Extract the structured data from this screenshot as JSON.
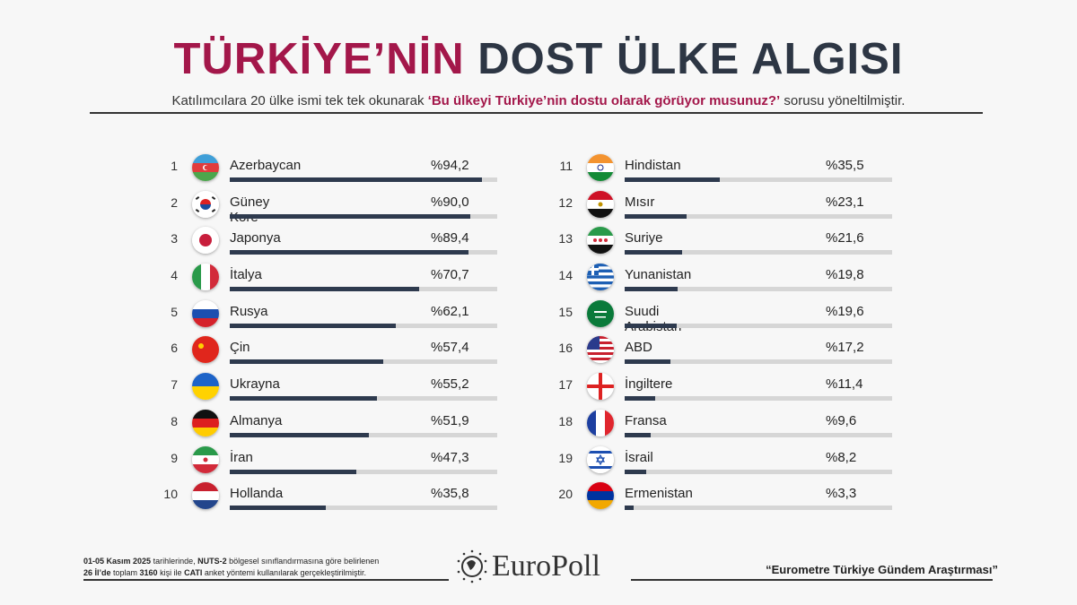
{
  "title": {
    "part1": "TÜRKİYE’NİN",
    "part2": "DOST ÜLKE ALGISI"
  },
  "subtitle": {
    "pre": "Katılımcılara 20 ülke ismi tek tek okunarak ",
    "highlight": "‘Bu ülkeyi Türkiye’nin dostu olarak görüyor musunuz?’",
    "post": " sorusu yöneltilmiştir."
  },
  "colors": {
    "title_accent": "#a3174a",
    "title_dark": "#2d3644",
    "bar": "#2e3a4e",
    "track": "#d6d6d6"
  },
  "chart_data": {
    "type": "bar",
    "orientation": "horizontal",
    "unit": "%",
    "xlim": [
      0,
      100
    ],
    "items": [
      {
        "rank": "1",
        "name": "Azerbaycan",
        "label": "%94,2",
        "value": 94.2,
        "flag": "az"
      },
      {
        "rank": "2",
        "name": "Güney Kore",
        "label": "%90,0",
        "value": 90.0,
        "flag": "kr"
      },
      {
        "rank": "3",
        "name": "Japonya",
        "label": "%89,4",
        "value": 89.4,
        "flag": "jp"
      },
      {
        "rank": "4",
        "name": "İtalya",
        "label": "%70,7",
        "value": 70.7,
        "flag": "it"
      },
      {
        "rank": "5",
        "name": "Rusya",
        "label": "%62,1",
        "value": 62.1,
        "flag": "ru"
      },
      {
        "rank": "6",
        "name": "Çin",
        "label": "%57,4",
        "value": 57.4,
        "flag": "cn"
      },
      {
        "rank": "7",
        "name": "Ukrayna",
        "label": "%55,2",
        "value": 55.2,
        "flag": "ua"
      },
      {
        "rank": "8",
        "name": "Almanya",
        "label": "%51,9",
        "value": 51.9,
        "flag": "de"
      },
      {
        "rank": "9",
        "name": "İran",
        "label": "%47,3",
        "value": 47.3,
        "flag": "ir"
      },
      {
        "rank": "10",
        "name": "Hollanda",
        "label": "%35,8",
        "value": 35.8,
        "flag": "nl"
      },
      {
        "rank": "11",
        "name": "Hindistan",
        "label": "%35,5",
        "value": 35.5,
        "flag": "in"
      },
      {
        "rank": "12",
        "name": "Mısır",
        "label": "%23,1",
        "value": 23.1,
        "flag": "eg"
      },
      {
        "rank": "13",
        "name": "Suriye",
        "label": "%21,6",
        "value": 21.6,
        "flag": "sy"
      },
      {
        "rank": "14",
        "name": "Yunanistan",
        "label": "%19,8",
        "value": 19.8,
        "flag": "gr"
      },
      {
        "rank": "15",
        "name": "Suudi Arabistan",
        "label": "%19,6",
        "value": 19.6,
        "flag": "sa"
      },
      {
        "rank": "16",
        "name": "ABD",
        "label": "%17,2",
        "value": 17.2,
        "flag": "us"
      },
      {
        "rank": "17",
        "name": "İngiltere",
        "label": "%11,4",
        "value": 11.4,
        "flag": "en"
      },
      {
        "rank": "18",
        "name": "Fransa",
        "label": "%9,6",
        "value": 9.6,
        "flag": "fr"
      },
      {
        "rank": "19",
        "name": "İsrail",
        "label": "%8,2",
        "value": 8.2,
        "flag": "il"
      },
      {
        "rank": "20",
        "name": "Ermenistan",
        "label": "%3,3",
        "value": 3.3,
        "flag": "am"
      }
    ]
  },
  "footer": {
    "method_line1_b1": "01-05 Kasım 2025",
    "method_line1_t1": " tarihlerinde, ",
    "method_line1_b2": "NUTS-2",
    "method_line1_t2": " bölgesel sınıflandırmasına göre belirlenen",
    "method_line2_b1": "26 İl’de",
    "method_line2_t1": " toplam ",
    "method_line2_b2": "3160",
    "method_line2_t2": " kişi ile ",
    "method_line2_b3": "CATI",
    "method_line2_t3": " anket yöntemi kullanılarak gerçekleştirilmiştir.",
    "logo": "EuroPoll",
    "quote": "“Eurometre Türkiye Gündem Araştırması”"
  }
}
